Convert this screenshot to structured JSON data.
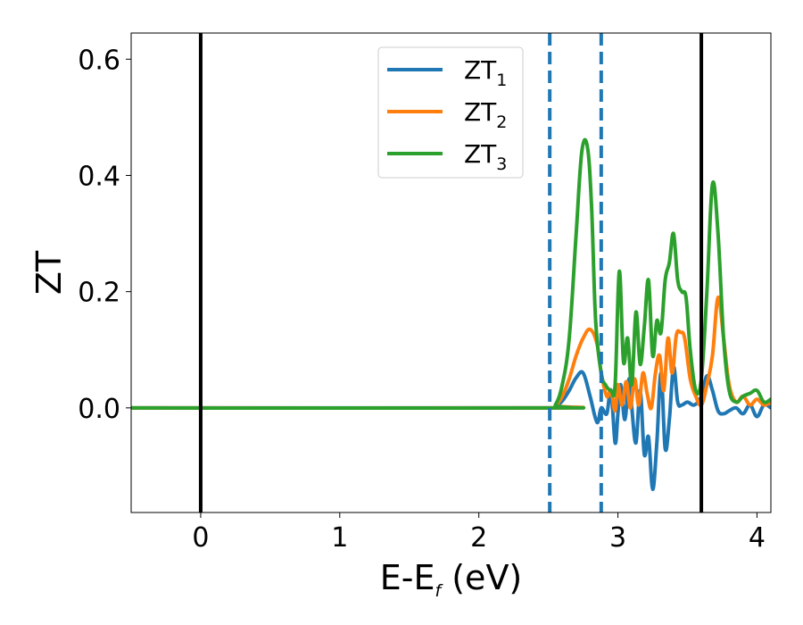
{
  "chart_data": {
    "type": "line",
    "xlabel_main": "E-E",
    "xlabel_sub": "f",
    "xlabel_tail": " (eV)",
    "ylabel": "ZT",
    "xlim": [
      -0.5,
      4.1
    ],
    "ylim": [
      -0.18,
      0.645
    ],
    "x_ticks": [
      0,
      1,
      2,
      3,
      4
    ],
    "x_tick_labels": [
      "0",
      "1",
      "2",
      "3",
      "4"
    ],
    "y_ticks": [
      0.0,
      0.2,
      0.4,
      0.6
    ],
    "y_tick_labels": [
      "0.0",
      "0.2",
      "0.4",
      "0.6"
    ],
    "grid": false,
    "legend_position": "top-center",
    "vertical_lines": [
      {
        "x": 0.0,
        "style": "solid",
        "color": "#000000"
      },
      {
        "x": 2.51,
        "style": "dashed",
        "color": "#1f77b4"
      },
      {
        "x": 2.88,
        "style": "dashed",
        "color": "#1f77b4"
      },
      {
        "x": 3.6,
        "style": "solid",
        "color": "#000000"
      }
    ],
    "series": [
      {
        "name": "ZT",
        "sub": "1",
        "color": "#1f77b4",
        "x": [
          -0.5,
          2.5,
          2.55,
          2.6,
          2.65,
          2.7,
          2.75,
          2.8,
          2.85,
          2.88,
          2.92,
          2.95,
          2.98,
          3.0,
          3.02,
          3.05,
          3.08,
          3.1,
          3.13,
          3.16,
          3.19,
          3.22,
          3.25,
          3.28,
          3.31,
          3.34,
          3.37,
          3.4,
          3.43,
          3.46,
          3.5,
          3.55,
          3.6,
          3.64,
          3.68,
          3.72,
          3.76,
          3.8,
          3.85,
          3.9,
          3.95,
          4.0,
          4.05,
          4.1
        ],
        "y": [
          0.0,
          0.0,
          0.002,
          0.012,
          0.03,
          0.052,
          0.06,
          0.02,
          -0.025,
          0.0,
          -0.01,
          0.03,
          -0.06,
          -0.01,
          0.04,
          -0.02,
          0.05,
          0.0,
          -0.06,
          0.03,
          -0.08,
          -0.05,
          -0.14,
          -0.06,
          0.06,
          -0.07,
          -0.02,
          0.07,
          0.01,
          0.005,
          0.01,
          0.005,
          0.02,
          0.055,
          0.03,
          -0.005,
          -0.01,
          -0.005,
          0.0,
          -0.01,
          0.005,
          -0.015,
          0.005,
          0.0
        ]
      },
      {
        "name": "ZT",
        "sub": "2",
        "color": "#ff7f0e",
        "x": [
          -0.5,
          2.5,
          2.55,
          2.6,
          2.65,
          2.7,
          2.75,
          2.8,
          2.85,
          2.88,
          2.92,
          2.95,
          2.98,
          3.0,
          3.03,
          3.06,
          3.09,
          3.12,
          3.15,
          3.18,
          3.21,
          3.24,
          3.27,
          3.3,
          3.33,
          3.36,
          3.39,
          3.42,
          3.45,
          3.48,
          3.52,
          3.56,
          3.6,
          3.64,
          3.68,
          3.72,
          3.76,
          3.8,
          3.85,
          3.9,
          3.95,
          4.0,
          4.05,
          4.1
        ],
        "y": [
          0.0,
          0.0,
          0.004,
          0.02,
          0.05,
          0.09,
          0.12,
          0.135,
          0.11,
          0.06,
          0.02,
          0.03,
          -0.005,
          0.04,
          0.005,
          0.045,
          0.0,
          0.05,
          0.005,
          0.06,
          0.025,
          0.0,
          0.06,
          0.09,
          0.03,
          0.12,
          0.06,
          0.125,
          0.13,
          0.12,
          0.05,
          0.02,
          0.005,
          0.04,
          0.09,
          0.19,
          0.12,
          0.04,
          0.01,
          0.02,
          0.005,
          0.015,
          0.005,
          0.01
        ]
      },
      {
        "name": "ZT",
        "sub": "3",
        "color": "#2ca02c",
        "x": [
          -0.5,
          2.5,
          2.55,
          2.6,
          2.65,
          2.7,
          2.74,
          2.78,
          2.81,
          2.84,
          2.88,
          2.91,
          2.95,
          2.98,
          3.01,
          3.04,
          3.07,
          3.1,
          3.13,
          3.16,
          3.19,
          3.22,
          3.25,
          3.28,
          3.31,
          3.34,
          3.37,
          3.4,
          3.43,
          3.46,
          3.49,
          3.52,
          3.56,
          3.6,
          3.64,
          3.68,
          3.72,
          3.76,
          3.8,
          3.85,
          3.9,
          3.95,
          4.0,
          4.05,
          4.1
        ],
        "y": [
          0.0,
          0.0,
          0.005,
          0.04,
          0.12,
          0.3,
          0.44,
          0.45,
          0.35,
          0.15,
          0.06,
          0.04,
          0.03,
          0.04,
          0.235,
          0.08,
          0.12,
          0.04,
          0.165,
          0.075,
          0.14,
          0.22,
          0.09,
          0.15,
          0.13,
          0.22,
          0.25,
          0.3,
          0.22,
          0.2,
          0.19,
          0.1,
          0.03,
          0.05,
          0.2,
          0.385,
          0.3,
          0.12,
          0.03,
          0.01,
          0.02,
          0.025,
          0.03,
          0.01,
          0.015
        ]
      }
    ]
  }
}
